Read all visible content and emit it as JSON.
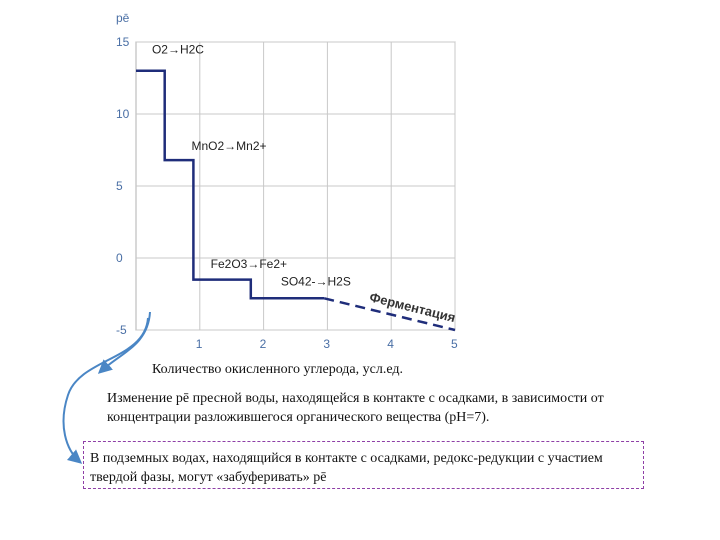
{
  "chart_data": {
    "type": "line",
    "ylabel": "pē",
    "xlabel": "Количество окисленного углерода, усл.ед.",
    "xlim": [
      0,
      5
    ],
    "ylim": [
      -5,
      15
    ],
    "x_ticks": [
      "1",
      "2",
      "3",
      "4",
      "5"
    ],
    "y_ticks": [
      "15",
      "10",
      "5",
      "0",
      "-5"
    ],
    "grid": true,
    "series": [
      {
        "style": "solid",
        "color": "#1f2d7a",
        "points": [
          [
            0,
            13
          ],
          [
            0.45,
            13
          ],
          [
            0.45,
            6.8
          ],
          [
            0.9,
            6.8
          ],
          [
            0.9,
            -1.5
          ],
          [
            1.8,
            -1.5
          ],
          [
            1.8,
            -2.8
          ],
          [
            2.95,
            -2.8
          ]
        ]
      },
      {
        "style": "dashed",
        "color": "#1f2d7a",
        "points": [
          [
            2.95,
            -2.8
          ],
          [
            5,
            -5
          ]
        ]
      }
    ],
    "annotations": [
      {
        "text": "O2→H2C",
        "x": 0.25,
        "y": 14.2
      },
      {
        "text": "MnO2→Mn2+",
        "x": 0.87,
        "y": 7.5
      },
      {
        "text": "Fe2O3→Fe2+",
        "x": 1.17,
        "y": -0.7
      },
      {
        "text": "SO42-→H2S",
        "x": 2.27,
        "y": -1.9
      },
      {
        "text": "Ферментация",
        "x": 3.65,
        "y": -2.9
      }
    ]
  },
  "caption": "Изменение pē пресной воды, находящейся в контакте с осадками, в зависимости от концентрации разложившегося органического вещества (pH=7).",
  "note": "В подземных водах, находящийся в контакте с осадками, редокс-редукции с участием твердой фазы, могут «забуферивать» pē",
  "colors": {
    "arrow": "#4a86c5",
    "box_border": "#8e3fa6",
    "grid": "#c8c8c8",
    "axis_text": "#4a6fa5"
  }
}
